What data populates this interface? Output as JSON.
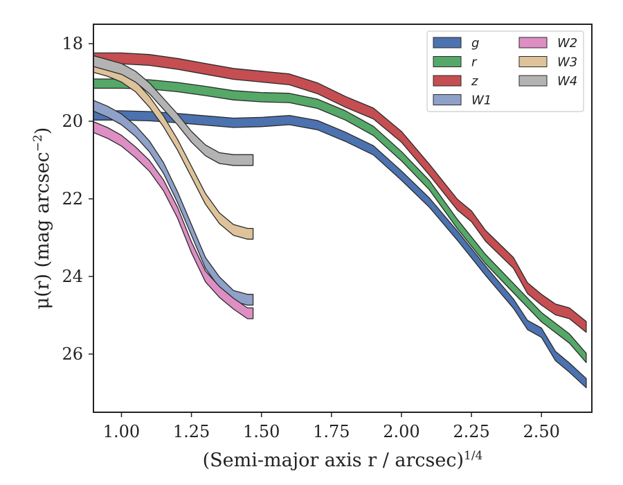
{
  "chart_data": {
    "type": "area",
    "xlabel": "(Semi-major axis r / arcsec)",
    "xlabel_italic_part": "r",
    "xlabel_sup": "1/4",
    "ylabel": "μ(r) (mag arcsec",
    "ylabel_sup": "−2",
    "ylabel_tail": ")",
    "xlim": [
      0.9,
      2.68
    ],
    "ylim": [
      27.5,
      17.5
    ],
    "y_inverted": true,
    "xticks": [
      1.0,
      1.25,
      1.5,
      1.75,
      2.0,
      2.25,
      2.5
    ],
    "xtick_labels": [
      "1.00",
      "1.25",
      "1.50",
      "1.75",
      "2.00",
      "2.25",
      "2.50"
    ],
    "yticks": [
      18,
      20,
      22,
      24,
      26
    ],
    "ytick_labels": [
      "18",
      "20",
      "22",
      "24",
      "26"
    ],
    "grid": false,
    "legend_position": "top-right",
    "legend_columns": 2,
    "series": [
      {
        "name": "g",
        "color": "#4c72b0",
        "x": [
          0.9,
          1.0,
          1.1,
          1.2,
          1.3,
          1.4,
          1.5,
          1.6,
          1.7,
          1.8,
          1.9,
          2.0,
          2.1,
          2.2,
          2.3,
          2.4,
          2.45,
          2.5,
          2.55,
          2.6,
          2.66
        ],
        "y": [
          19.85,
          19.85,
          19.87,
          19.92,
          19.98,
          20.04,
          20.02,
          19.97,
          20.1,
          20.4,
          20.75,
          21.4,
          22.1,
          22.95,
          23.85,
          24.7,
          25.25,
          25.45,
          26.05,
          26.35,
          26.75
        ],
        "band": 0.12
      },
      {
        "name": "r",
        "color": "#55a868",
        "x": [
          0.9,
          1.0,
          1.1,
          1.2,
          1.3,
          1.4,
          1.5,
          1.6,
          1.7,
          1.8,
          1.9,
          2.0,
          2.1,
          2.2,
          2.3,
          2.4,
          2.5,
          2.6,
          2.66
        ],
        "y": [
          19.03,
          19.03,
          19.05,
          19.12,
          19.22,
          19.33,
          19.38,
          19.4,
          19.55,
          19.85,
          20.25,
          20.9,
          21.65,
          22.65,
          23.55,
          24.3,
          25.05,
          25.6,
          26.1
        ],
        "band": 0.12
      },
      {
        "name": "z",
        "color": "#c44e52",
        "x": [
          0.9,
          1.0,
          1.1,
          1.2,
          1.3,
          1.4,
          1.5,
          1.6,
          1.7,
          1.8,
          1.9,
          2.0,
          2.1,
          2.2,
          2.25,
          2.3,
          2.4,
          2.45,
          2.5,
          2.55,
          2.6,
          2.66
        ],
        "y": [
          18.38,
          18.38,
          18.42,
          18.52,
          18.65,
          18.78,
          18.85,
          18.92,
          19.15,
          19.5,
          19.8,
          20.4,
          21.25,
          22.15,
          22.45,
          22.95,
          23.65,
          24.3,
          24.6,
          24.85,
          24.95,
          25.3
        ],
        "band": 0.14
      },
      {
        "name": "W1",
        "color": "#8fa1c8",
        "x": [
          0.9,
          0.95,
          1.0,
          1.05,
          1.1,
          1.15,
          1.2,
          1.25,
          1.3,
          1.35,
          1.4,
          1.45,
          1.47
        ],
        "y": [
          19.6,
          19.75,
          19.95,
          20.25,
          20.65,
          21.2,
          21.95,
          22.8,
          23.65,
          24.15,
          24.5,
          24.6,
          24.6
        ],
        "band": 0.14
      },
      {
        "name": "W2",
        "color": "#dd8fc3",
        "x": [
          0.9,
          0.95,
          1.0,
          1.05,
          1.1,
          1.15,
          1.2,
          1.25,
          1.3,
          1.35,
          1.4,
          1.45,
          1.47
        ],
        "y": [
          20.15,
          20.3,
          20.5,
          20.8,
          21.15,
          21.65,
          22.35,
          23.25,
          24.0,
          24.4,
          24.7,
          24.95,
          24.95
        ],
        "band": 0.14
      },
      {
        "name": "W3",
        "color": "#dec39a",
        "x": [
          0.9,
          0.95,
          1.0,
          1.05,
          1.1,
          1.15,
          1.2,
          1.25,
          1.3,
          1.35,
          1.4,
          1.45,
          1.47
        ],
        "y": [
          18.6,
          18.7,
          18.85,
          19.1,
          19.5,
          20.0,
          20.6,
          21.3,
          22.0,
          22.5,
          22.8,
          22.9,
          22.9
        ],
        "band": 0.14
      },
      {
        "name": "W4",
        "color": "#b3b3b3",
        "x": [
          0.9,
          0.95,
          1.0,
          1.05,
          1.1,
          1.15,
          1.2,
          1.25,
          1.3,
          1.35,
          1.4,
          1.45,
          1.47
        ],
        "y": [
          18.45,
          18.55,
          18.65,
          18.85,
          19.15,
          19.55,
          19.95,
          20.4,
          20.75,
          20.95,
          21.0,
          21.0,
          21.0
        ],
        "band": 0.14
      }
    ]
  }
}
